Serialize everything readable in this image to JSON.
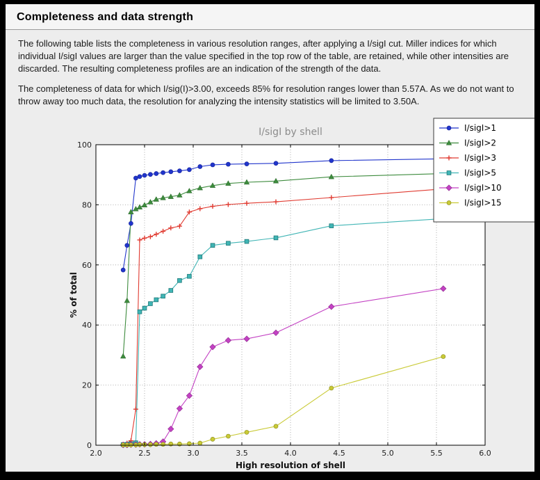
{
  "header": {
    "title": "Completeness and data strength"
  },
  "paragraphs": [
    "The following table lists the completeness in various resolution ranges, after applying a I/sigI cut. Miller indices for which individual I/sigI values are larger than the value specified in the top row of the table, are retained, while other intensities are discarded. The resulting completeness profiles are an indication of the strength of the data.",
    "The completeness of data for which I/sig(I)>3.00, exceeds  85% for resolution ranges lower than 5.57A. As we do not want to throw away too much data, the resolution for analyzing the intensity statistics will be limited to 3.50A."
  ],
  "theme": {
    "frame_bg": "#000000",
    "page_bg": "#ededed",
    "plot_bg": "#ffffff",
    "grid_color": "#9a9a9a",
    "title_color": "#8c8c8c"
  },
  "chart_data": {
    "type": "line",
    "title": "I/sigI by shell",
    "xlabel": "High resolution of shell",
    "ylabel": "% of total",
    "xlim": [
      2.0,
      6.0
    ],
    "ylim": [
      0,
      100
    ],
    "xticks": [
      "2.0",
      "2.5",
      "3.0",
      "3.5",
      "4.0",
      "4.5",
      "5.0",
      "5.5",
      "6.0"
    ],
    "yticks": [
      "0",
      "20",
      "40",
      "60",
      "80",
      "100"
    ],
    "grid": "dotted",
    "legend_position": "top-right",
    "x": [
      2.28,
      2.32,
      2.36,
      2.41,
      2.45,
      2.5,
      2.56,
      2.62,
      2.69,
      2.77,
      2.86,
      2.96,
      3.07,
      3.2,
      3.36,
      3.55,
      3.85,
      4.42,
      5.57
    ],
    "series": [
      {
        "name": "I/sigI>1",
        "color": "#2135cc",
        "edge": "#18279e",
        "marker": "circle",
        "values": [
          58.3,
          66.5,
          73.8,
          88.9,
          89.4,
          89.8,
          90.1,
          90.4,
          90.7,
          91.0,
          91.3,
          91.7,
          92.7,
          93.3,
          93.5,
          93.6,
          93.8,
          94.7,
          95.3
        ]
      },
      {
        "name": "I/sigI>2",
        "color": "#3d8b3d",
        "edge": "#2c672c",
        "marker": "triangle-up",
        "values": [
          29.6,
          48.1,
          77.6,
          78.6,
          79.2,
          79.9,
          80.9,
          81.8,
          82.3,
          82.7,
          83.2,
          84.6,
          85.6,
          86.4,
          87.1,
          87.5,
          87.9,
          89.3,
          90.4
        ]
      },
      {
        "name": "I/sigI>3",
        "color": "#e03a30",
        "edge": "#e03a30",
        "marker": "plus",
        "values": [
          0.3,
          0.7,
          1.5,
          12.0,
          68.3,
          68.9,
          69.4,
          70.2,
          71.2,
          72.3,
          72.9,
          77.6,
          78.7,
          79.5,
          80.1,
          80.5,
          81.0,
          82.4,
          85.3
        ]
      },
      {
        "name": "I/sigI>5",
        "color": "#40b5b5",
        "edge": "#1e7878",
        "marker": "square",
        "values": [
          0.2,
          0.3,
          0.5,
          0.8,
          44.4,
          45.6,
          47.1,
          48.4,
          49.6,
          51.5,
          54.8,
          56.2,
          62.7,
          66.5,
          67.2,
          67.8,
          69.0,
          73.0,
          75.4
        ]
      },
      {
        "name": "I/sigI>10",
        "color": "#c341c3",
        "edge": "#8c2a8c",
        "marker": "diamond",
        "values": [
          0.1,
          0.1,
          0.2,
          0.2,
          0.3,
          0.3,
          0.4,
          0.6,
          1.2,
          5.4,
          12.2,
          16.5,
          26.1,
          32.7,
          34.9,
          35.4,
          37.4,
          46.1,
          52.1
        ]
      },
      {
        "name": "I/sigI>15",
        "color": "#c9ca35",
        "edge": "#8f9022",
        "marker": "circle",
        "values": [
          0.1,
          0.1,
          0.1,
          0.1,
          0.2,
          0.2,
          0.2,
          0.3,
          0.3,
          0.4,
          0.4,
          0.5,
          0.7,
          2.0,
          3.0,
          4.3,
          6.3,
          19.0,
          29.5
        ]
      }
    ]
  }
}
